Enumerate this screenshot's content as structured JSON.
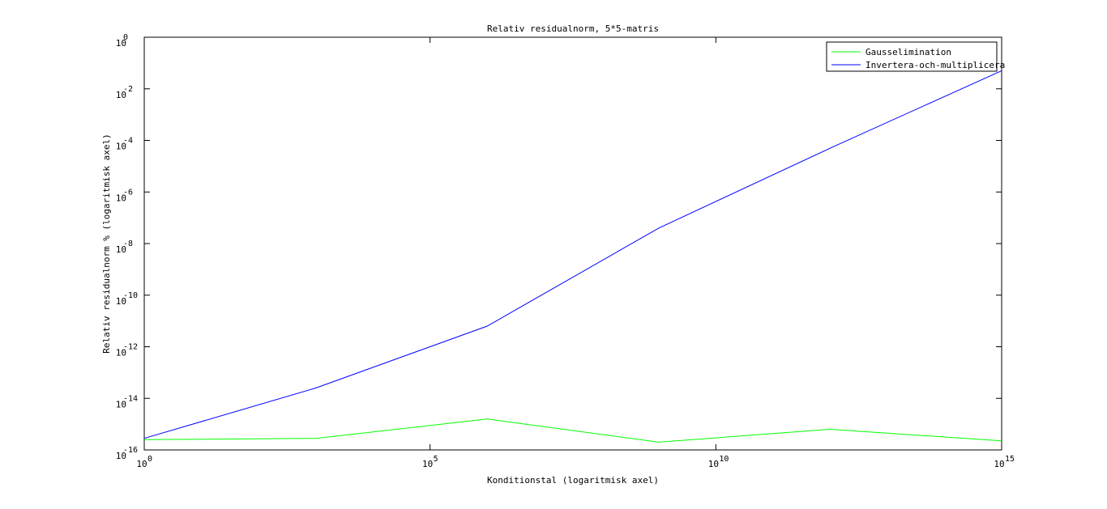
{
  "chart_data": {
    "type": "line",
    "title": "Relativ residualnorm, 5*5-matris",
    "xlabel": "Konditionstal (logaritmisk axel)",
    "ylabel": "Relativ residualnorm % (logaritmisk axel)",
    "xscale": "log",
    "yscale": "log",
    "xlim_exponent": [
      0,
      15
    ],
    "ylim_exponent": [
      -16,
      0
    ],
    "x_ticks": [
      {
        "base": "10",
        "exp": "0",
        "value": 0
      },
      {
        "base": "10",
        "exp": "5",
        "value": 5
      },
      {
        "base": "10",
        "exp": "10",
        "value": 10
      },
      {
        "base": "10",
        "exp": "15",
        "value": 15
      }
    ],
    "y_ticks": [
      {
        "base": "10",
        "exp": "0",
        "value": 0
      },
      {
        "base": "10",
        "exp": "-2",
        "value": -2
      },
      {
        "base": "10",
        "exp": "-4",
        "value": -4
      },
      {
        "base": "10",
        "exp": "-6",
        "value": -6
      },
      {
        "base": "10",
        "exp": "-8",
        "value": -8
      },
      {
        "base": "10",
        "exp": "-10",
        "value": -10
      },
      {
        "base": "10",
        "exp": "-12",
        "value": -12
      },
      {
        "base": "10",
        "exp": "-14",
        "value": -14
      },
      {
        "base": "10",
        "exp": "-16",
        "value": -16
      }
    ],
    "legend_position": "top-right",
    "grid": false,
    "series": [
      {
        "name": "Gausselimination",
        "color": "#00ff00",
        "x_exponent": [
          0,
          3,
          6,
          9,
          12,
          15
        ],
        "y_exponent": [
          -15.6,
          -15.55,
          -14.8,
          -15.7,
          -15.2,
          -15.65
        ]
      },
      {
        "name": "Invertera-och-multiplicera",
        "color": "#0000ff",
        "x_exponent": [
          0,
          3,
          6,
          9,
          12,
          15
        ],
        "y_exponent": [
          -15.55,
          -13.6,
          -11.2,
          -7.4,
          -4.3,
          -1.3
        ]
      }
    ]
  }
}
